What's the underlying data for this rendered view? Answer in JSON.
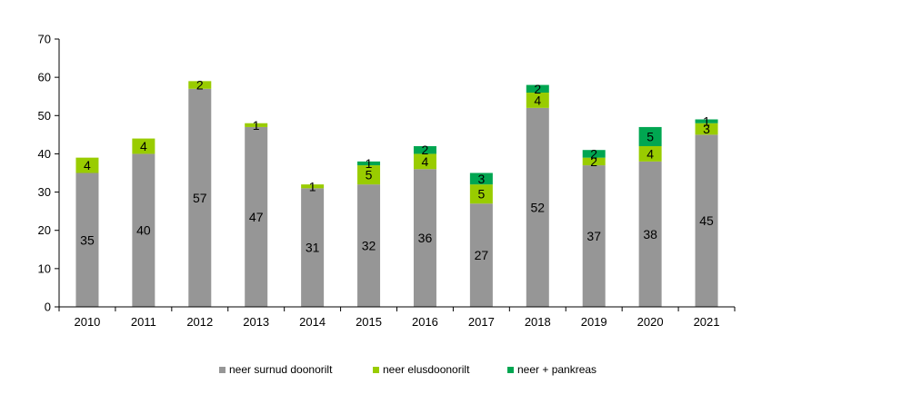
{
  "chart_data": {
    "type": "bar",
    "stacked": true,
    "categories": [
      "2010",
      "2011",
      "2012",
      "2013",
      "2014",
      "2015",
      "2016",
      "2017",
      "2018",
      "2019",
      "2020",
      "2021"
    ],
    "series": [
      {
        "name": "neer surnud doonorilt",
        "color": "#969696",
        "values": [
          35,
          40,
          57,
          47,
          31,
          32,
          36,
          27,
          52,
          37,
          38,
          45
        ]
      },
      {
        "name": "neer elusdoonorilt",
        "color": "#99cc00",
        "values": [
          4,
          4,
          2,
          1,
          1,
          5,
          4,
          5,
          4,
          2,
          4,
          3
        ]
      },
      {
        "name": "neer + pankreas",
        "color": "#00a651",
        "values": [
          0,
          0,
          0,
          0,
          0,
          1,
          2,
          3,
          2,
          2,
          5,
          1
        ]
      }
    ],
    "y_ticks": [
      "0",
      "10",
      "20",
      "30",
      "40",
      "50",
      "60",
      "70"
    ],
    "ylim": [
      0,
      70
    ],
    "grid": false,
    "legend_position": "bottom"
  }
}
